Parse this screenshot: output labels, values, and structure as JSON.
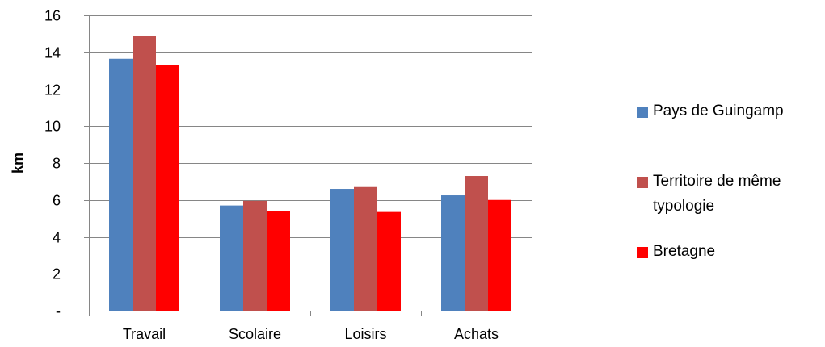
{
  "chart_data": {
    "type": "bar",
    "categories": [
      "Travail",
      "Scolaire",
      "Loisirs",
      "Achats"
    ],
    "series": [
      {
        "name": "Pays de Guingamp",
        "values": [
          13.65,
          5.7,
          6.6,
          6.25
        ],
        "color": "#4F81BD"
      },
      {
        "name": "Territoire de même typologie",
        "values": [
          14.9,
          5.95,
          6.7,
          7.3
        ],
        "color": "#C0504D"
      },
      {
        "name": "Bretagne",
        "values": [
          13.3,
          5.4,
          5.35,
          6.0
        ],
        "color": "#FF0000"
      }
    ],
    "title": "",
    "xlabel": "",
    "ylabel": "km",
    "ylim": [
      0,
      16
    ],
    "yticks": [
      0,
      2,
      4,
      6,
      8,
      10,
      12,
      14,
      16
    ],
    "ytick_labels": [
      "-",
      "2",
      "4",
      "6",
      "8",
      "10",
      "12",
      "14",
      "16"
    ],
    "grid": true,
    "legend_position": "right"
  }
}
